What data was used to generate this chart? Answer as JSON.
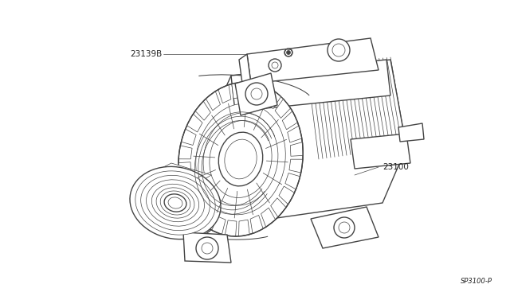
{
  "background_color": "#ffffff",
  "part_label_1": "23139B",
  "part_label_2": "23100",
  "part_code": "SP3100-P",
  "line_color": "#444444",
  "label_color": "#222222",
  "fig_width": 6.4,
  "fig_height": 3.72,
  "dpi": 100,
  "lw_main": 1.0,
  "lw_thin": 0.5,
  "lw_med": 0.75
}
